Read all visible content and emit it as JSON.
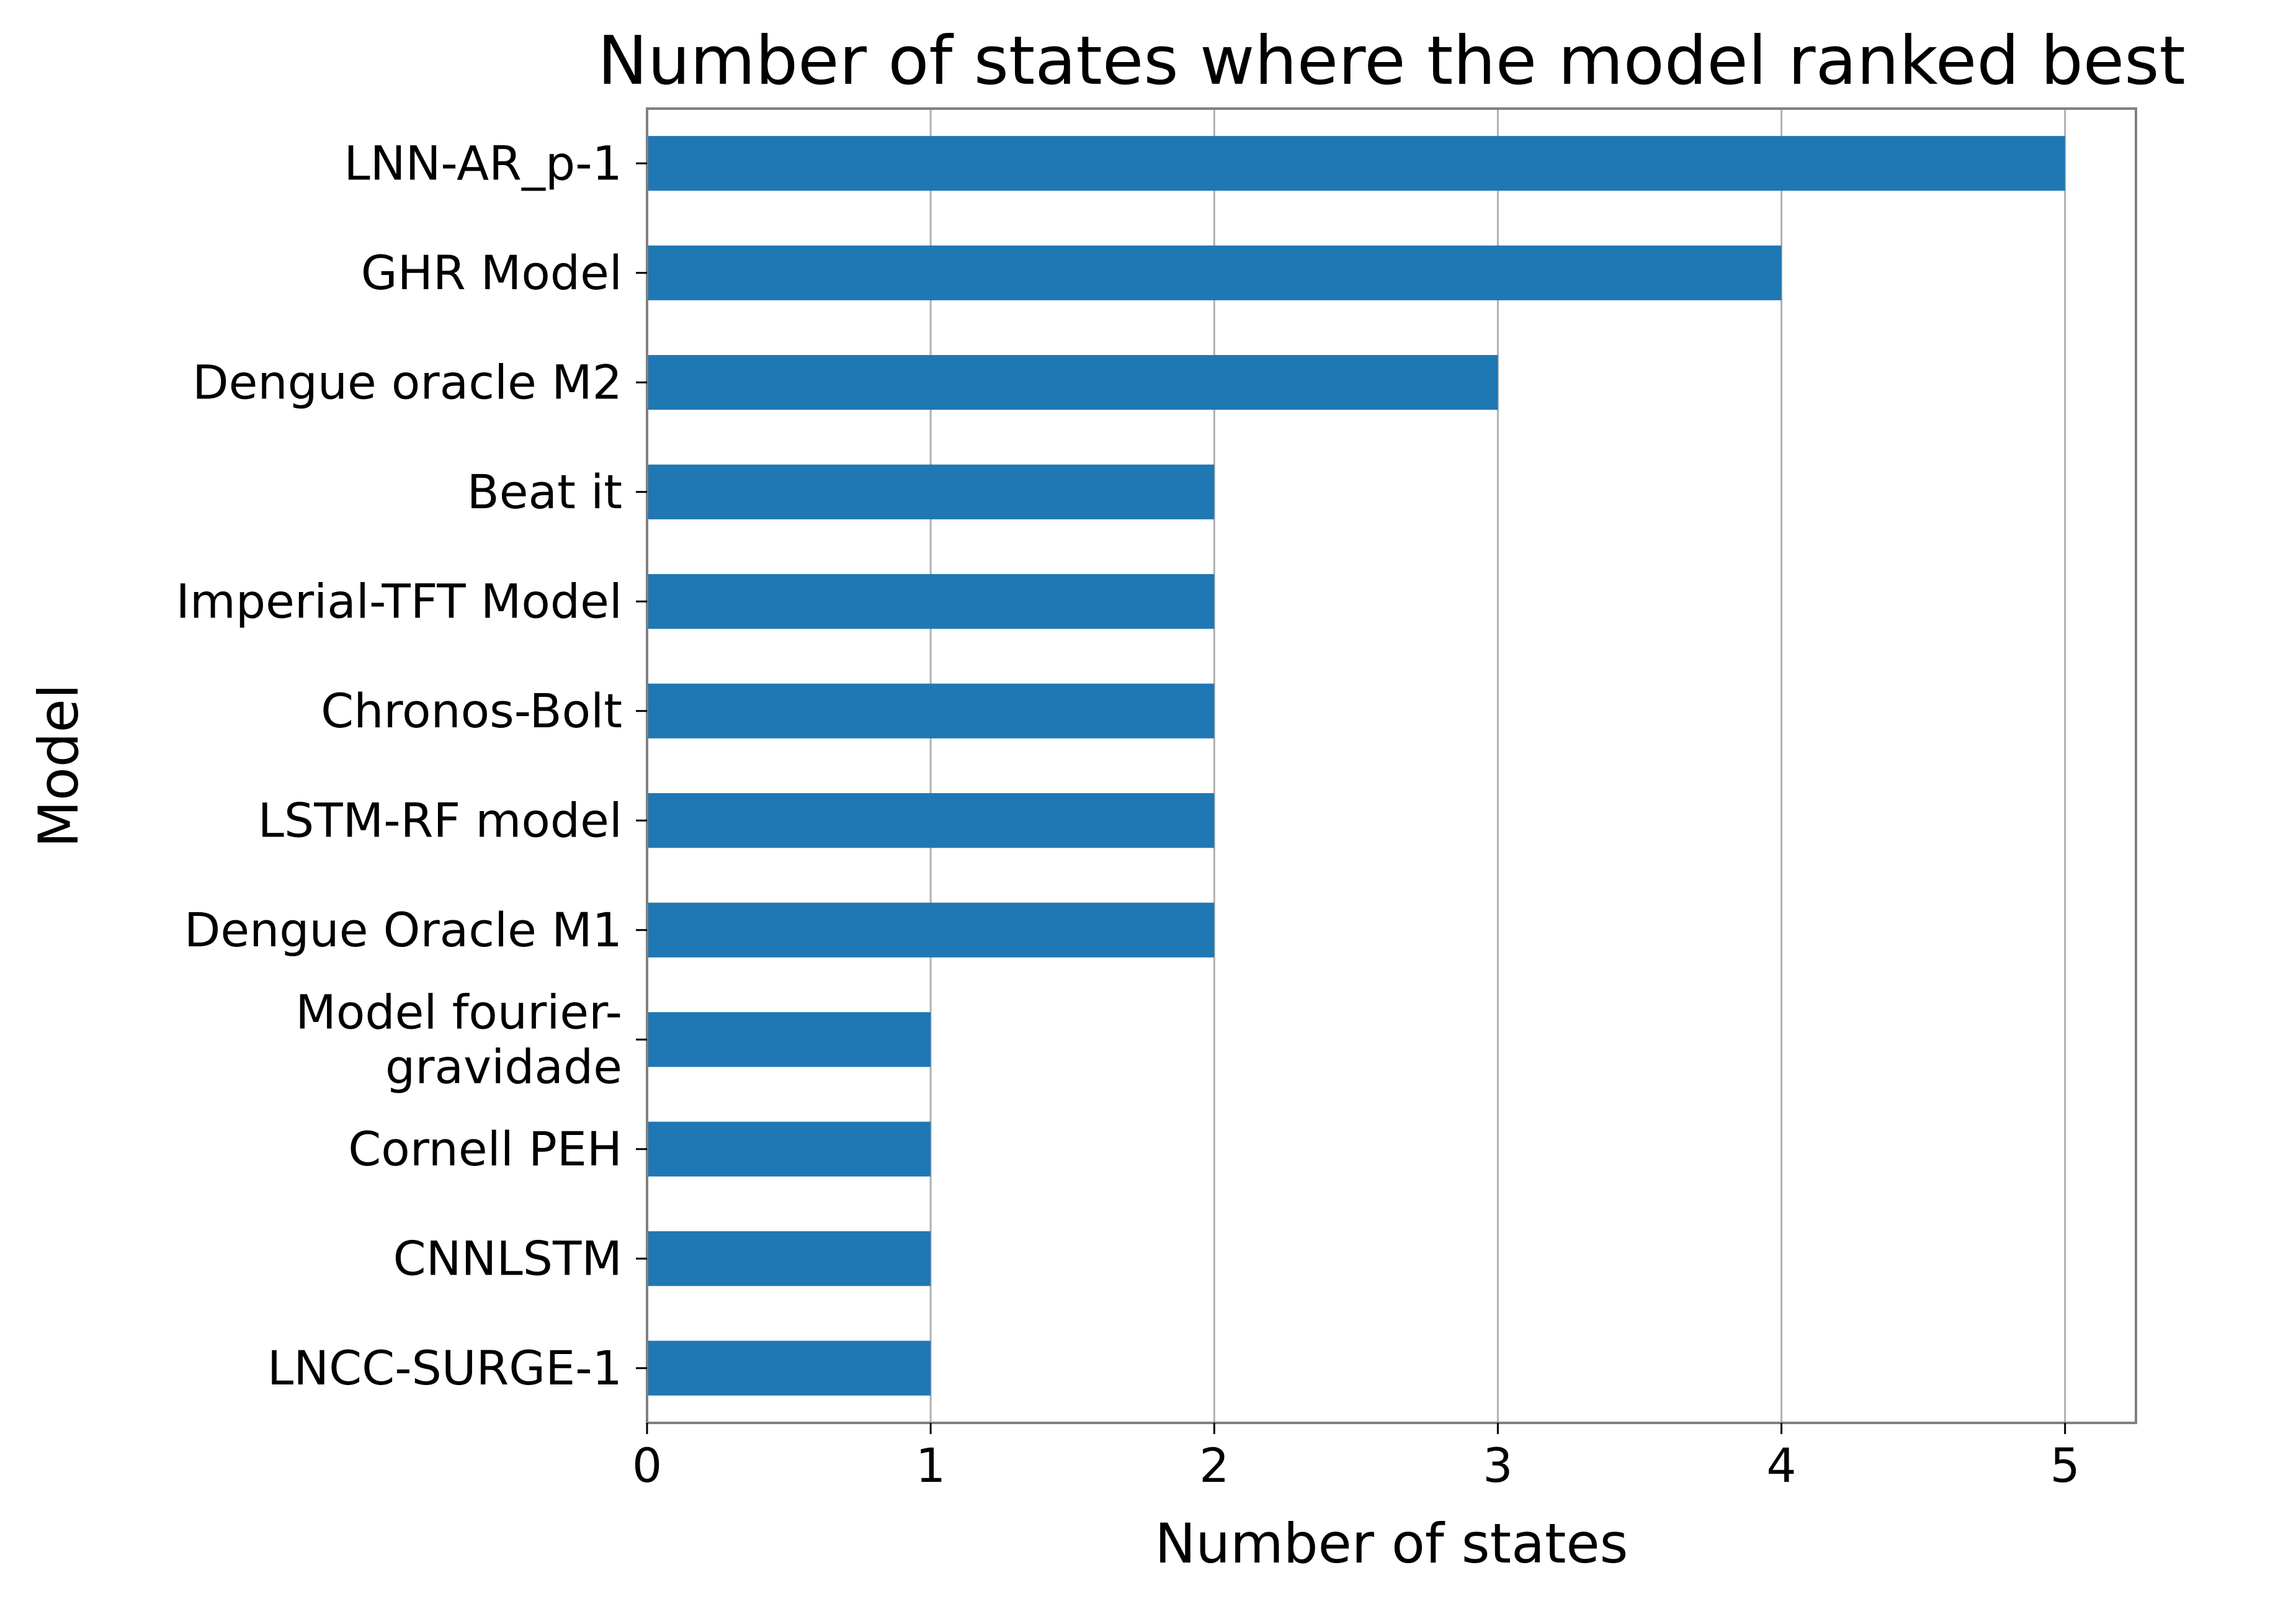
{
  "chart_data": {
    "type": "bar",
    "orientation": "horizontal",
    "title": "Number of states where the model ranked best",
    "xlabel": "Number of states",
    "ylabel": "Model",
    "categories": [
      "LNN-AR_p-1",
      "GHR Model",
      "Dengue oracle M2",
      "Beat it",
      "Imperial-TFT Model",
      "Chronos-Bolt",
      "LSTM-RF model",
      "Dengue Oracle M1",
      "Model fourier-\ngravidade",
      "Cornell PEH",
      "CNNLSTM",
      "LNCC-SURGE-1"
    ],
    "values": [
      5,
      4,
      3,
      2,
      2,
      2,
      2,
      2,
      1,
      1,
      1,
      1
    ],
    "xlim": [
      0,
      5.25
    ],
    "xticks": [
      0,
      1,
      2,
      3,
      4,
      5
    ],
    "grid": "vertical",
    "bar_color": "#1f77b4",
    "grid_color": "#b0b0b0",
    "spine_color": "#808080"
  }
}
